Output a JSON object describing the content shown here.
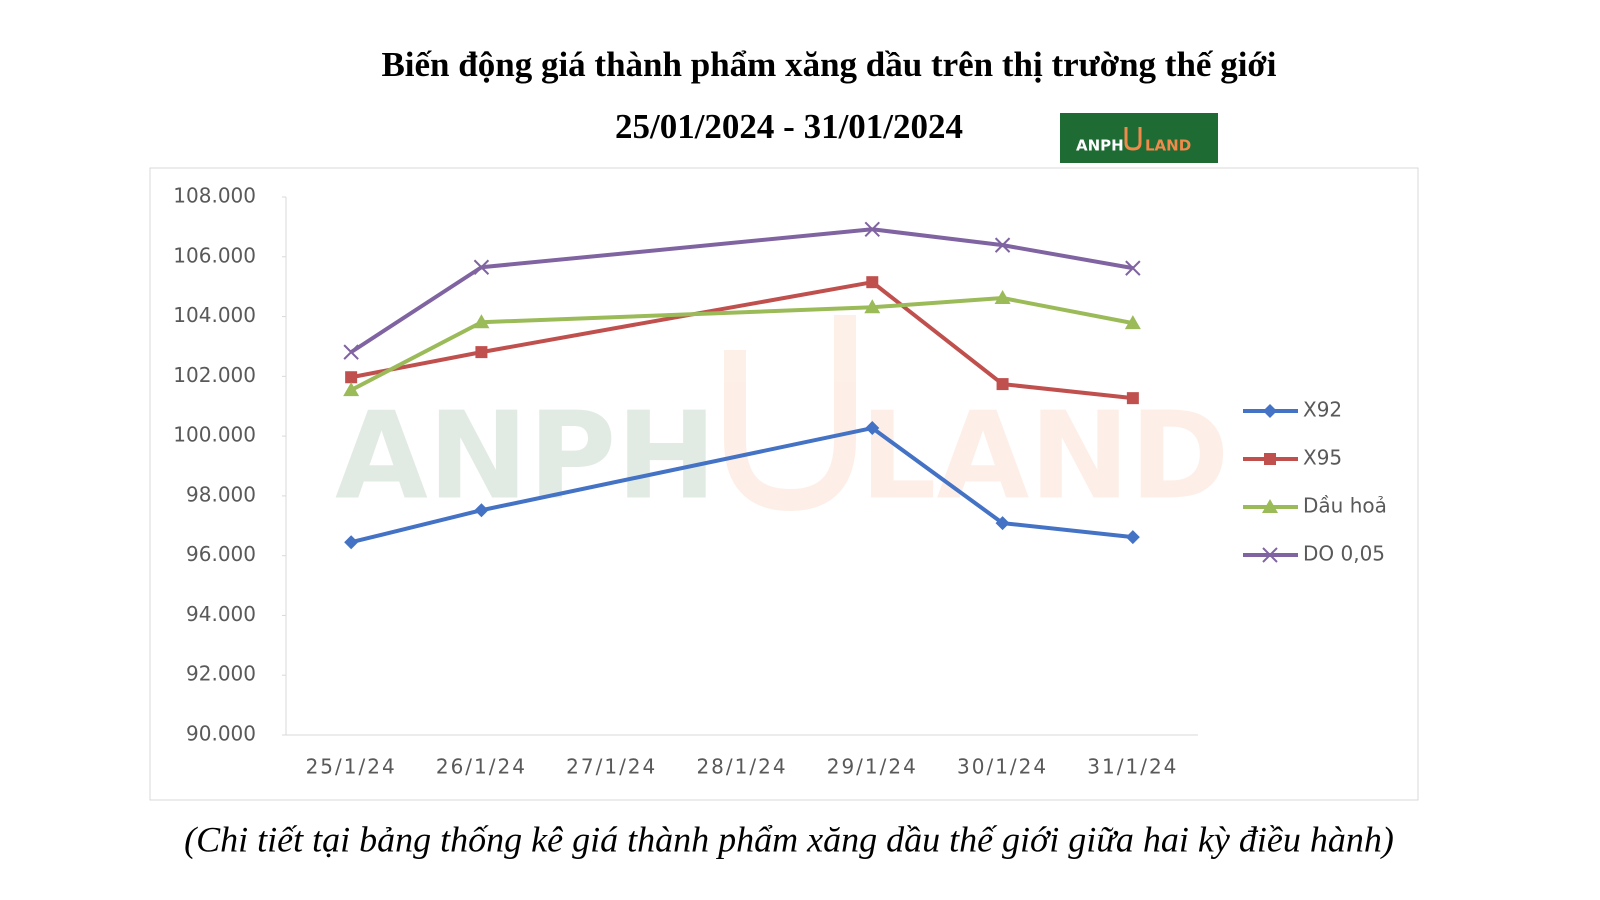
{
  "chart_data": {
    "type": "line",
    "title": "Biến động giá thành phẩm xăng dầu trên thị trường thế giới",
    "subtitle": "25/01/2024 - 31/01/2024",
    "logo": {
      "left": "ANPH",
      "right": "LAND"
    },
    "categories": [
      "25/1/24",
      "26/1/24",
      "27/1/24",
      "28/1/24",
      "29/1/24",
      "30/1/24",
      "31/1/24"
    ],
    "series": [
      {
        "name": "X92",
        "color": "#4472c4",
        "marker": "diamond",
        "values": [
          96450,
          97520,
          null,
          null,
          100270,
          97090,
          96620
        ]
      },
      {
        "name": "X95",
        "color": "#c0504d",
        "marker": "square",
        "values": [
          101970,
          102810,
          null,
          null,
          105150,
          101740,
          101270
        ]
      },
      {
        "name": "Dầu hoả",
        "color": "#9bbb59",
        "marker": "triangle",
        "values": [
          101540,
          103810,
          null,
          null,
          104310,
          104620,
          103780
        ]
      },
      {
        "name": "DO 0,05",
        "color": "#8064a2",
        "marker": "x",
        "values": [
          102810,
          105650,
          null,
          null,
          106920,
          106390,
          105620
        ]
      }
    ],
    "span_gaps": true,
    "ylim": [
      90000,
      108000
    ],
    "yticks": [
      {
        "value": 90000,
        "label": "90.000"
      },
      {
        "value": 92000,
        "label": "92.000"
      },
      {
        "value": 94000,
        "label": "94.000"
      },
      {
        "value": 96000,
        "label": "96.000"
      },
      {
        "value": 98000,
        "label": "98.000"
      },
      {
        "value": 100000,
        "label": "100.000"
      },
      {
        "value": 102000,
        "label": "102.000"
      },
      {
        "value": 104000,
        "label": "104.000"
      },
      {
        "value": 106000,
        "label": "106.000"
      },
      {
        "value": 108000,
        "label": "108.000"
      }
    ],
    "grid": false,
    "legend": "right",
    "note": "(Chi tiết tại bảng thống kê giá thành phẩm xăng dầu thế giới giữa hai kỳ điều hành)"
  }
}
